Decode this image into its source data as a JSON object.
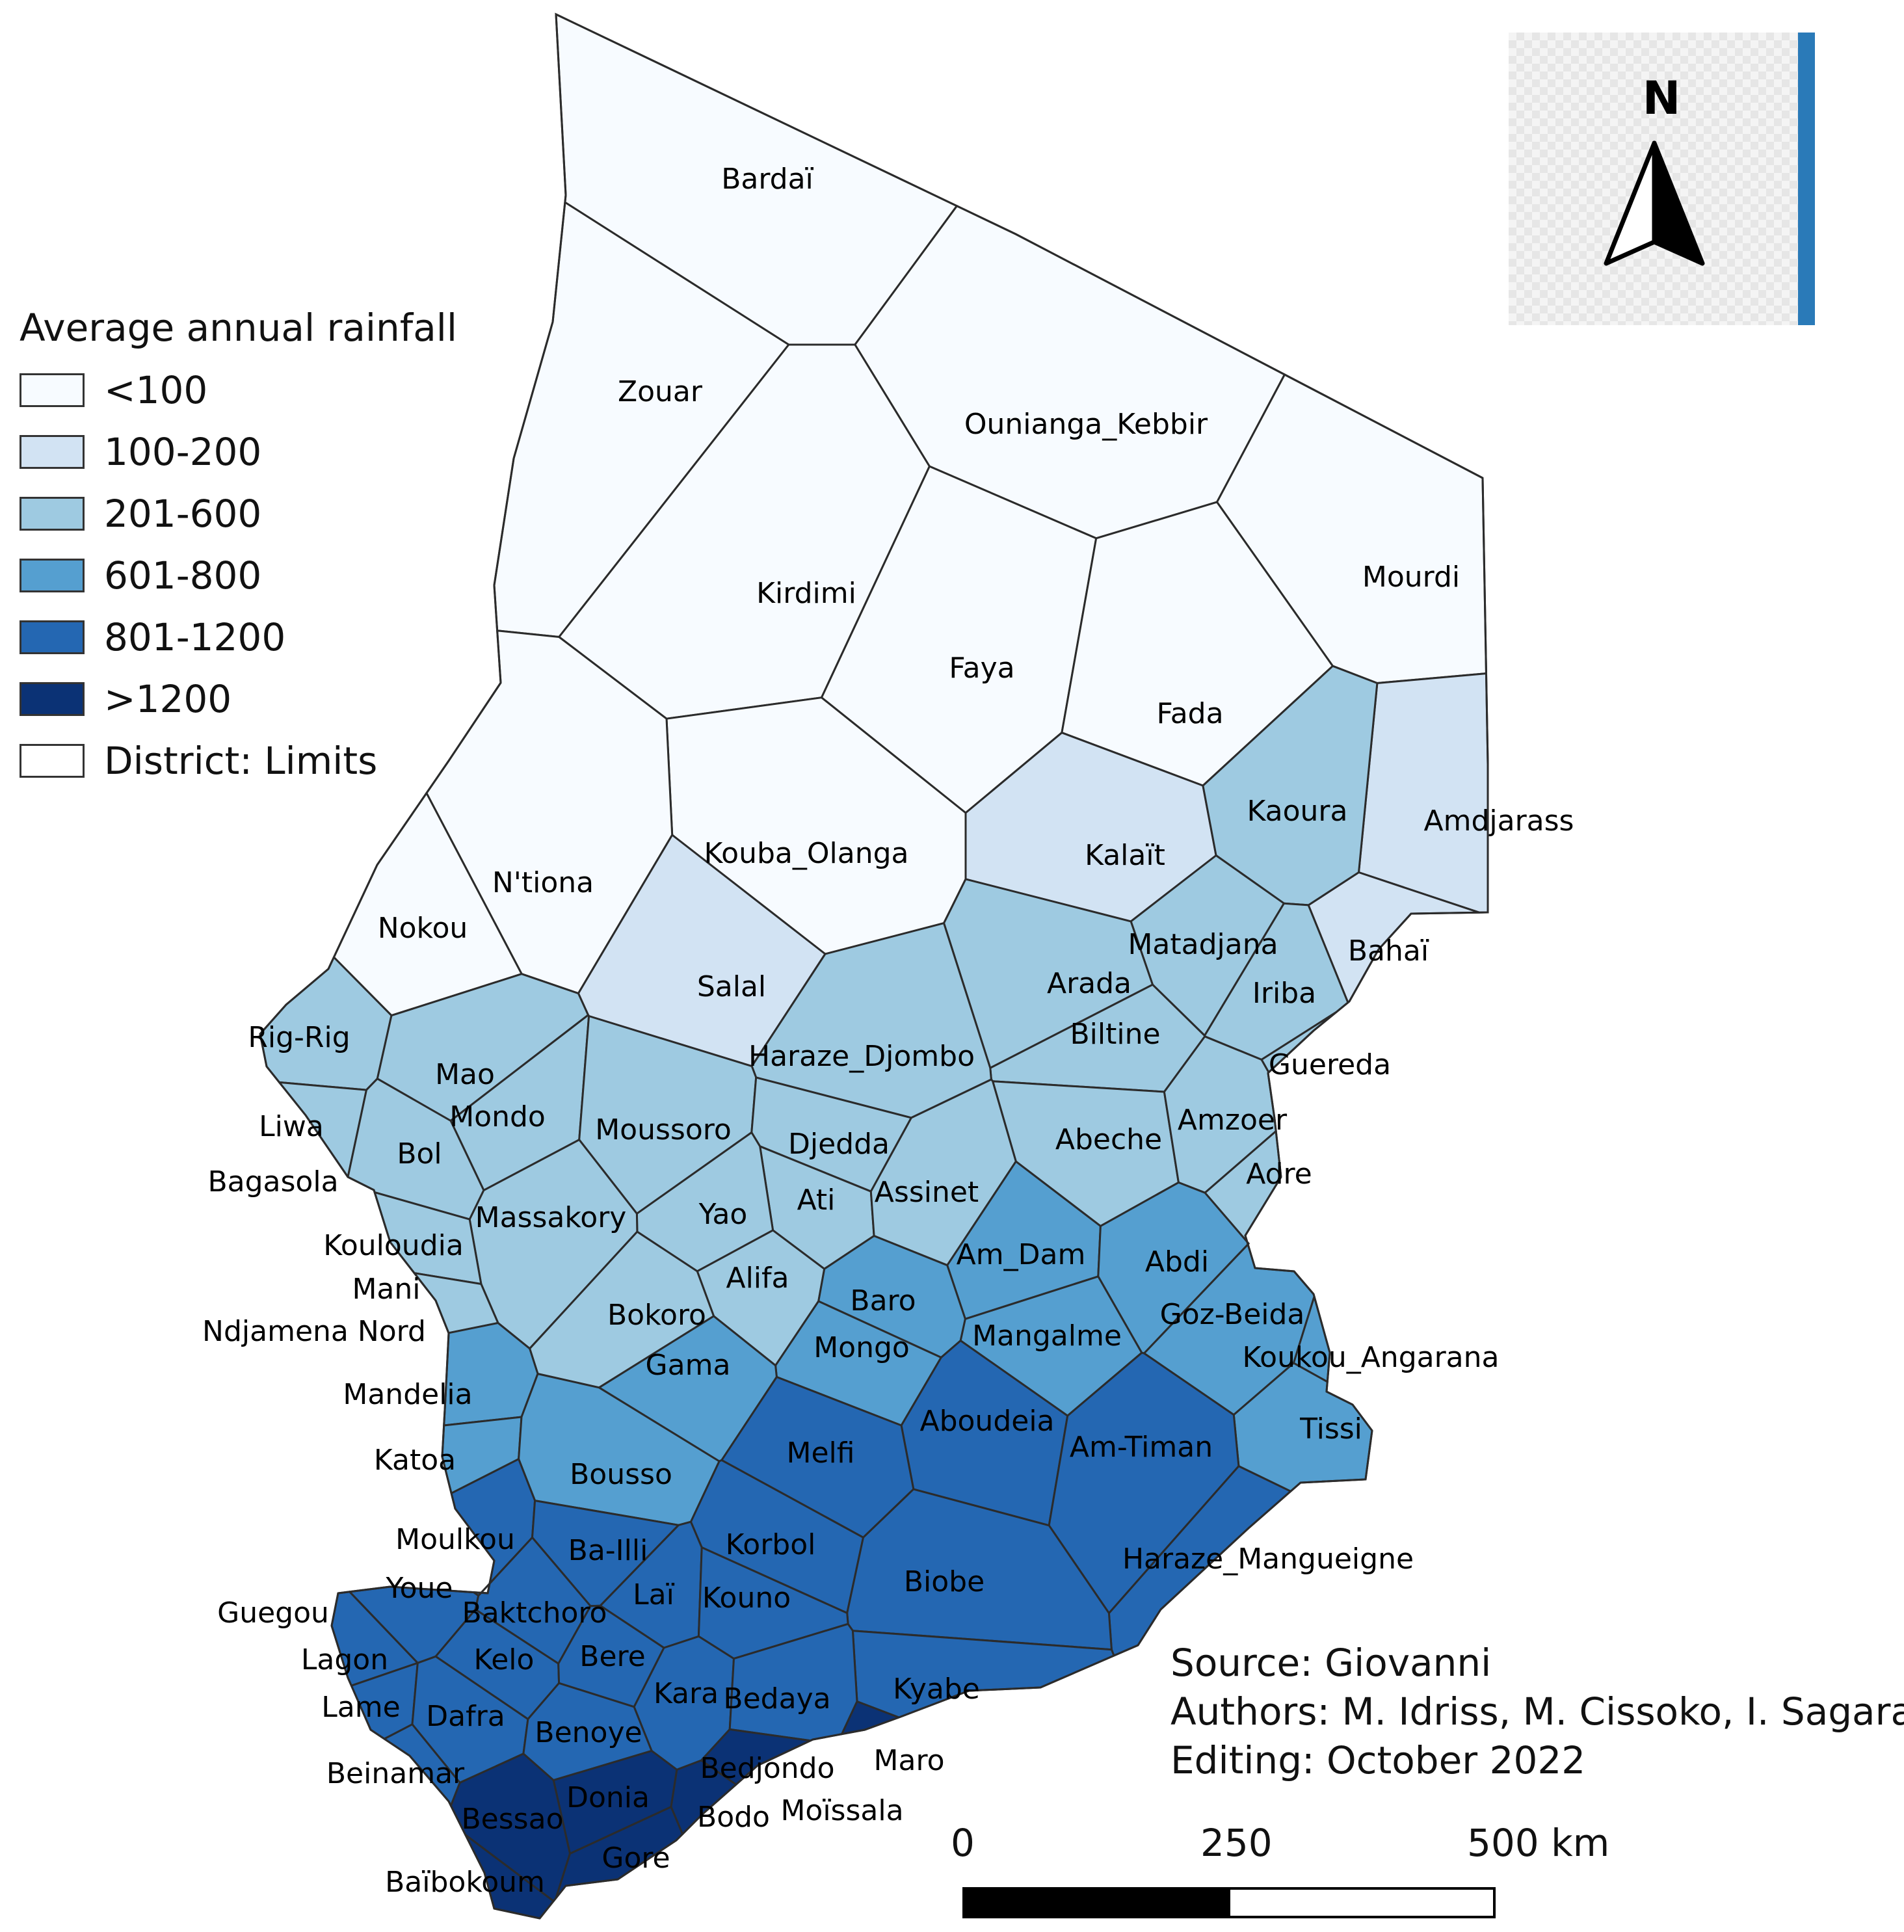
{
  "legend": {
    "title": "Average annual rainfall",
    "classes": [
      {
        "label": "<100",
        "color": "#f7fbff"
      },
      {
        "label": "100-200",
        "color": "#d2e3f3"
      },
      {
        "label": "201-600",
        "color": "#9ecae1"
      },
      {
        "label": "601-800",
        "color": "#559fd0"
      },
      {
        "label": "801-1200",
        "color": "#2467b2"
      },
      {
        "label": ">1200",
        "color": "#0b3275"
      }
    ],
    "limits_label": "District: Limits"
  },
  "credits": {
    "source": "Source: Giovanni",
    "authors": "Authors: M. Idriss, M. Cissoko, I. Sagara",
    "editing": "Editing: October 2022"
  },
  "north_arrow": {
    "letter": "N"
  },
  "scale_bar": {
    "labels": [
      "0",
      "250",
      "500 km"
    ]
  },
  "districts": [
    {
      "name": "Bardaï",
      "rainfall_class": "<100"
    },
    {
      "name": "Zouar",
      "rainfall_class": "<100"
    },
    {
      "name": "Ounianga_Kebbir",
      "rainfall_class": "<100"
    },
    {
      "name": "Mourdi",
      "rainfall_class": "<100"
    },
    {
      "name": "Kirdimi",
      "rainfall_class": "<100"
    },
    {
      "name": "Faya",
      "rainfall_class": "<100"
    },
    {
      "name": "Fada",
      "rainfall_class": "<100"
    },
    {
      "name": "Kouba_Olanga",
      "rainfall_class": "<100"
    },
    {
      "name": "N'tiona",
      "rainfall_class": "<100"
    },
    {
      "name": "Nokou",
      "rainfall_class": "<100"
    },
    {
      "name": "Kalaït",
      "rainfall_class": "100-200"
    },
    {
      "name": "Amdjarass",
      "rainfall_class": "100-200"
    },
    {
      "name": "Bahaï",
      "rainfall_class": "100-200"
    },
    {
      "name": "Salal",
      "rainfall_class": "100-200"
    },
    {
      "name": "Kaoura",
      "rainfall_class": "201-600"
    },
    {
      "name": "Matadjana",
      "rainfall_class": "201-600"
    },
    {
      "name": "Iriba",
      "rainfall_class": "201-600"
    },
    {
      "name": "Arada",
      "rainfall_class": "201-600"
    },
    {
      "name": "Biltine",
      "rainfall_class": "201-600"
    },
    {
      "name": "Guereda",
      "rainfall_class": "201-600"
    },
    {
      "name": "Rig-Rig",
      "rainfall_class": "201-600"
    },
    {
      "name": "Mao",
      "rainfall_class": "201-600"
    },
    {
      "name": "Haraze_Djombo",
      "rainfall_class": "201-600"
    },
    {
      "name": "Liwa",
      "rainfall_class": "201-600"
    },
    {
      "name": "Mondo",
      "rainfall_class": "201-600"
    },
    {
      "name": "Moussoro",
      "rainfall_class": "201-600"
    },
    {
      "name": "Djedda",
      "rainfall_class": "201-600"
    },
    {
      "name": "Abeche",
      "rainfall_class": "201-600"
    },
    {
      "name": "Amzoer",
      "rainfall_class": "201-600"
    },
    {
      "name": "Bol",
      "rainfall_class": "201-600"
    },
    {
      "name": "Bagasola",
      "rainfall_class": "201-600"
    },
    {
      "name": "Adre",
      "rainfall_class": "201-600"
    },
    {
      "name": "Ati",
      "rainfall_class": "201-600"
    },
    {
      "name": "Assinet",
      "rainfall_class": "201-600"
    },
    {
      "name": "Yao",
      "rainfall_class": "201-600"
    },
    {
      "name": "Massakory",
      "rainfall_class": "201-600"
    },
    {
      "name": "Kouloudia",
      "rainfall_class": "201-600"
    },
    {
      "name": "Alifa",
      "rainfall_class": "201-600"
    },
    {
      "name": "Mani",
      "rainfall_class": "201-600"
    },
    {
      "name": "Bokoro",
      "rainfall_class": "201-600"
    },
    {
      "name": "Ndjamena Nord",
      "rainfall_class": "201-600"
    },
    {
      "name": "Am_Dam",
      "rainfall_class": "601-800"
    },
    {
      "name": "Abdi",
      "rainfall_class": "601-800"
    },
    {
      "name": "Baro",
      "rainfall_class": "601-800"
    },
    {
      "name": "Goz-Beida",
      "rainfall_class": "601-800"
    },
    {
      "name": "Mangalme",
      "rainfall_class": "601-800"
    },
    {
      "name": "Mongo",
      "rainfall_class": "601-800"
    },
    {
      "name": "Koukou_Angarana",
      "rainfall_class": "601-800"
    },
    {
      "name": "Gama",
      "rainfall_class": "601-800"
    },
    {
      "name": "Mandelia",
      "rainfall_class": "601-800"
    },
    {
      "name": "Tissi",
      "rainfall_class": "601-800"
    },
    {
      "name": "Katoa",
      "rainfall_class": "601-800"
    },
    {
      "name": "Bousso",
      "rainfall_class": "601-800"
    },
    {
      "name": "Aboudeia",
      "rainfall_class": "801-1200"
    },
    {
      "name": "Am-Timan",
      "rainfall_class": "801-1200"
    },
    {
      "name": "Melfi",
      "rainfall_class": "801-1200"
    },
    {
      "name": "Korbol",
      "rainfall_class": "801-1200"
    },
    {
      "name": "Moulkou",
      "rainfall_class": "801-1200"
    },
    {
      "name": "Ba-Illi",
      "rainfall_class": "801-1200"
    },
    {
      "name": "Haraze_Mangueigne",
      "rainfall_class": "801-1200"
    },
    {
      "name": "Biobe",
      "rainfall_class": "801-1200"
    },
    {
      "name": "Youe",
      "rainfall_class": "801-1200"
    },
    {
      "name": "Laï",
      "rainfall_class": "801-1200"
    },
    {
      "name": "Kouno",
      "rainfall_class": "801-1200"
    },
    {
      "name": "Guegou",
      "rainfall_class": "801-1200"
    },
    {
      "name": "Baktchoro",
      "rainfall_class": "801-1200"
    },
    {
      "name": "Lagon",
      "rainfall_class": "801-1200"
    },
    {
      "name": "Kelo",
      "rainfall_class": "801-1200"
    },
    {
      "name": "Bere",
      "rainfall_class": "801-1200"
    },
    {
      "name": "Kyabe",
      "rainfall_class": "801-1200"
    },
    {
      "name": "Kara",
      "rainfall_class": "801-1200"
    },
    {
      "name": "Bedaya",
      "rainfall_class": "801-1200"
    },
    {
      "name": "Lame",
      "rainfall_class": "801-1200"
    },
    {
      "name": "Dafra",
      "rainfall_class": "801-1200"
    },
    {
      "name": "Benoye",
      "rainfall_class": "801-1200"
    },
    {
      "name": "Maro",
      "rainfall_class": ">1200"
    },
    {
      "name": "Beinamar",
      "rainfall_class": "801-1200"
    },
    {
      "name": "Bedjondo",
      "rainfall_class": ">1200"
    },
    {
      "name": "Donia",
      "rainfall_class": ">1200"
    },
    {
      "name": "Moïssala",
      "rainfall_class": ">1200"
    },
    {
      "name": "Bessao",
      "rainfall_class": ">1200"
    },
    {
      "name": "Bodo",
      "rainfall_class": ">1200"
    },
    {
      "name": "Gore",
      "rainfall_class": ">1200"
    },
    {
      "name": "Baïbokoum",
      "rainfall_class": ">1200"
    }
  ]
}
